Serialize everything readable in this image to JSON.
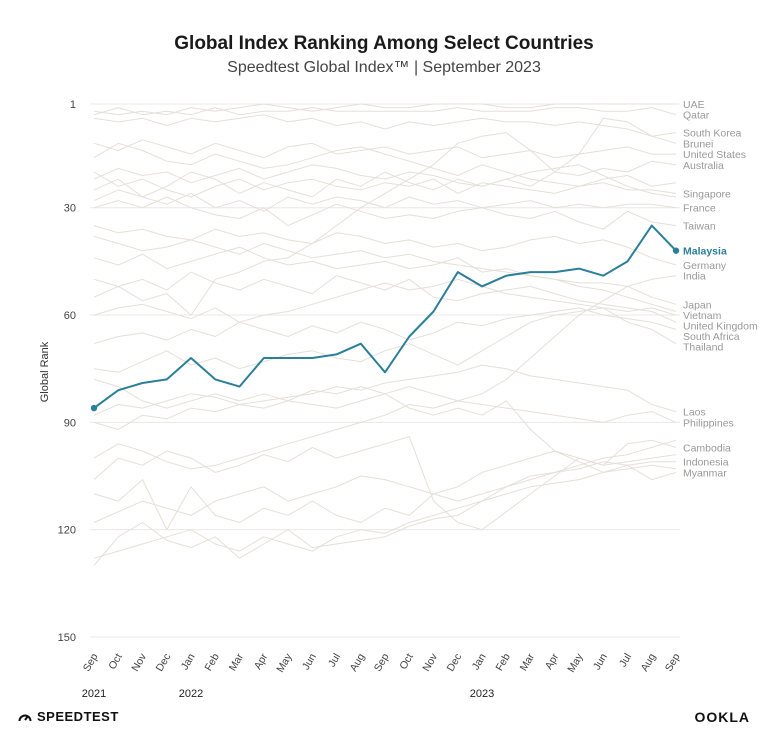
{
  "title": "Global Index Ranking Among Select Countries",
  "subtitle": "Speedtest Global Index™ | September 2023",
  "footer": {
    "left_logo": "SPEEDTEST",
    "right_logo": "OOKLA"
  },
  "colors": {
    "highlight": "#2a7f9a",
    "background_lines": "#e4e0d8",
    "grid": "#e8e8e8",
    "label_gray": "#999999"
  },
  "chart_data": {
    "type": "line",
    "title": "Global Index Ranking Among Select Countries",
    "subtitle": "Speedtest Global Index™ | September 2023",
    "ylabel": "Global Rank",
    "xlabel": "",
    "ylim": [
      1,
      150
    ],
    "y_inverted": true,
    "yticks": [
      1,
      30,
      60,
      90,
      120,
      150
    ],
    "grid": true,
    "x": [
      "Sep",
      "Oct",
      "Nov",
      "Dec",
      "Jan",
      "Feb",
      "Mar",
      "Apr",
      "May",
      "Jun",
      "Jul",
      "Aug",
      "Sep",
      "Oct",
      "Nov",
      "Dec",
      "Jan",
      "Feb",
      "Mar",
      "Apr",
      "May",
      "Jun",
      "Jul",
      "Aug",
      "Sep"
    ],
    "year_labels": [
      {
        "label": "2021",
        "index": 0
      },
      {
        "label": "2022",
        "index": 4
      },
      {
        "label": "2023",
        "index": 16
      }
    ],
    "highlight_series": "Malaysia",
    "series": [
      {
        "name": "UAE",
        "values": [
          3,
          4,
          3,
          4,
          2,
          3,
          2,
          1,
          2,
          3,
          2,
          1,
          2,
          2,
          1,
          1,
          1,
          2,
          2,
          1,
          1,
          1,
          1,
          1,
          1
        ]
      },
      {
        "name": "Qatar",
        "values": [
          4,
          2,
          4,
          3,
          4,
          2,
          4,
          3,
          3,
          2,
          3,
          3,
          3,
          3,
          3,
          2,
          3,
          3,
          3,
          2,
          2,
          3,
          3,
          2,
          4
        ]
      },
      {
        "name": "South Korea",
        "values": [
          5,
          6,
          5,
          7,
          5,
          6,
          5,
          4,
          6,
          5,
          7,
          6,
          8,
          6,
          7,
          6,
          5,
          6,
          6,
          7,
          6,
          7,
          8,
          10,
          9
        ]
      },
      {
        "name": "Brunei",
        "values": [
          55,
          52,
          56,
          54,
          60,
          50,
          48,
          45,
          44,
          40,
          35,
          30,
          26,
          22,
          18,
          12,
          10,
          9,
          14,
          20,
          15,
          5,
          6,
          10,
          12
        ]
      },
      {
        "name": "United States",
        "values": [
          12,
          14,
          11,
          13,
          15,
          12,
          14,
          16,
          13,
          12,
          15,
          14,
          13,
          15,
          14,
          13,
          16,
          15,
          14,
          16,
          15,
          14,
          13,
          15,
          15
        ]
      },
      {
        "name": "Australia",
        "values": [
          25,
          22,
          27,
          24,
          20,
          22,
          26,
          23,
          25,
          27,
          22,
          24,
          20,
          23,
          25,
          22,
          24,
          22,
          24,
          20,
          21,
          19,
          20,
          17,
          18
        ]
      },
      {
        "name": "Singapore",
        "values": [
          20,
          24,
          22,
          25,
          27,
          24,
          22,
          25,
          23,
          22,
          24,
          25,
          23,
          24,
          22,
          26,
          23,
          24,
          25,
          26,
          24,
          23,
          25,
          25,
          26
        ]
      },
      {
        "name": "France",
        "values": [
          28,
          25,
          27,
          29,
          26,
          30,
          28,
          31,
          27,
          29,
          27,
          28,
          30,
          27,
          29,
          28,
          30,
          29,
          28,
          30,
          29,
          30,
          29,
          29,
          30
        ]
      },
      {
        "name": "Taiwan",
        "values": [
          30,
          28,
          30,
          27,
          30,
          32,
          33,
          30,
          35,
          32,
          29,
          31,
          33,
          32,
          33,
          31,
          30,
          32,
          33,
          31,
          34,
          36,
          31,
          34,
          35
        ]
      },
      {
        "name": "Malaysia",
        "values": [
          86,
          81,
          79,
          78,
          72,
          78,
          80,
          72,
          72,
          72,
          71,
          68,
          76,
          66,
          59,
          48,
          52,
          49,
          48,
          48,
          47,
          49,
          45,
          35,
          42
        ]
      },
      {
        "name": "Germany",
        "values": [
          35,
          37,
          36,
          38,
          39,
          36,
          38,
          37,
          39,
          40,
          37,
          38,
          40,
          39,
          41,
          40,
          42,
          41,
          39,
          38,
          40,
          39,
          41,
          44,
          46
        ]
      },
      {
        "name": "India",
        "values": [
          100,
          96,
          98,
          101,
          103,
          102,
          100,
          98,
          96,
          94,
          92,
          90,
          88,
          85,
          86,
          84,
          82,
          78,
          72,
          66,
          60,
          56,
          52,
          50,
          49
        ]
      },
      {
        "name": "Japan",
        "values": [
          38,
          40,
          42,
          41,
          39,
          41,
          43,
          40,
          42,
          44,
          43,
          42,
          44,
          43,
          45,
          46,
          47,
          48,
          49,
          50,
          51,
          51,
          52,
          55,
          57
        ]
      },
      {
        "name": "Vietnam",
        "values": [
          60,
          58,
          57,
          59,
          61,
          58,
          62,
          60,
          59,
          57,
          55,
          53,
          51,
          53,
          52,
          50,
          52,
          54,
          55,
          56,
          57,
          58,
          59,
          58,
          60
        ]
      },
      {
        "name": "United Kingdom",
        "values": [
          50,
          52,
          50,
          53,
          48,
          51,
          53,
          50,
          52,
          54,
          49,
          51,
          53,
          50,
          55,
          56,
          54,
          53,
          52,
          54,
          56,
          57,
          58,
          59,
          62
        ]
      },
      {
        "name": "South Africa",
        "values": [
          68,
          66,
          65,
          67,
          64,
          66,
          62,
          64,
          66,
          63,
          65,
          62,
          64,
          67,
          65,
          62,
          63,
          61,
          60,
          59,
          58,
          60,
          61,
          62,
          64
        ]
      },
      {
        "name": "Thailand",
        "values": [
          75,
          76,
          73,
          70,
          74,
          72,
          75,
          73,
          71,
          70,
          72,
          73,
          70,
          68,
          71,
          74,
          70,
          66,
          62,
          60,
          59,
          58,
          62,
          64,
          68
        ]
      },
      {
        "name": "Laos",
        "values": [
          90,
          92,
          88,
          89,
          86,
          87,
          85,
          84,
          83,
          82,
          80,
          81,
          79,
          78,
          77,
          76,
          74,
          75,
          77,
          78,
          79,
          80,
          81,
          85,
          87
        ]
      },
      {
        "name": "Philippines",
        "values": [
          88,
          85,
          86,
          84,
          82,
          83,
          85,
          86,
          84,
          85,
          86,
          84,
          82,
          80,
          82,
          84,
          85,
          86,
          87,
          88,
          89,
          90,
          88,
          87,
          90
        ]
      },
      {
        "name": "Cambodia",
        "values": [
          78,
          80,
          84,
          86,
          84,
          82,
          84,
          82,
          84,
          81,
          82,
          80,
          82,
          86,
          88,
          86,
          88,
          84,
          92,
          98,
          100,
          102,
          96,
          95,
          97
        ]
      },
      {
        "name": "Indonesia",
        "values": [
          118,
          115,
          112,
          114,
          116,
          112,
          110,
          108,
          112,
          110,
          108,
          105,
          106,
          108,
          110,
          112,
          110,
          108,
          106,
          104,
          103,
          101,
          102,
          101,
          101
        ]
      },
      {
        "name": "Myanmar",
        "values": [
          110,
          112,
          106,
          120,
          108,
          116,
          118,
          114,
          116,
          112,
          116,
          118,
          114,
          116,
          110,
          108,
          104,
          102,
          100,
          98,
          101,
          104,
          102,
          106,
          104
        ]
      },
      {
        "name": "",
        "values": [
          128,
          126,
          124,
          122,
          120,
          124,
          126,
          122,
          124,
          126,
          122,
          120,
          121,
          118,
          116,
          114,
          112,
          110,
          108,
          107,
          106,
          104,
          103,
          102,
          103
        ]
      },
      {
        "name": "",
        "values": [
          130,
          122,
          118,
          123,
          125,
          122,
          128,
          124,
          120,
          125,
          124,
          123,
          122,
          119,
          117,
          116,
          112,
          108,
          105,
          104,
          102,
          100,
          99,
          97,
          95
        ]
      },
      {
        "name": "",
        "values": [
          106,
          100,
          102,
          98,
          100,
          104,
          102,
          99,
          101,
          97,
          100,
          98,
          96,
          94,
          112,
          118,
          120,
          115,
          110,
          105,
          100,
          102,
          101,
          100,
          99
        ]
      },
      {
        "name": "",
        "values": [
          44,
          46,
          43,
          47,
          45,
          43,
          41,
          44,
          46,
          45,
          47,
          46,
          45,
          47,
          46,
          44,
          48,
          47,
          49,
          50,
          52,
          53,
          55,
          57,
          59
        ]
      },
      {
        "name": "",
        "values": [
          16,
          12,
          14,
          17,
          18,
          15,
          17,
          19,
          18,
          16,
          14,
          13,
          15,
          17,
          19,
          21,
          18,
          20,
          22,
          23,
          24,
          22,
          21,
          24,
          23
        ]
      },
      {
        "name": "",
        "values": [
          22,
          19,
          21,
          20,
          23,
          21,
          19,
          22,
          20,
          18,
          19,
          21,
          22,
          20,
          21,
          23,
          24,
          22,
          20,
          19,
          18,
          21,
          24,
          26,
          27
        ]
      }
    ]
  }
}
